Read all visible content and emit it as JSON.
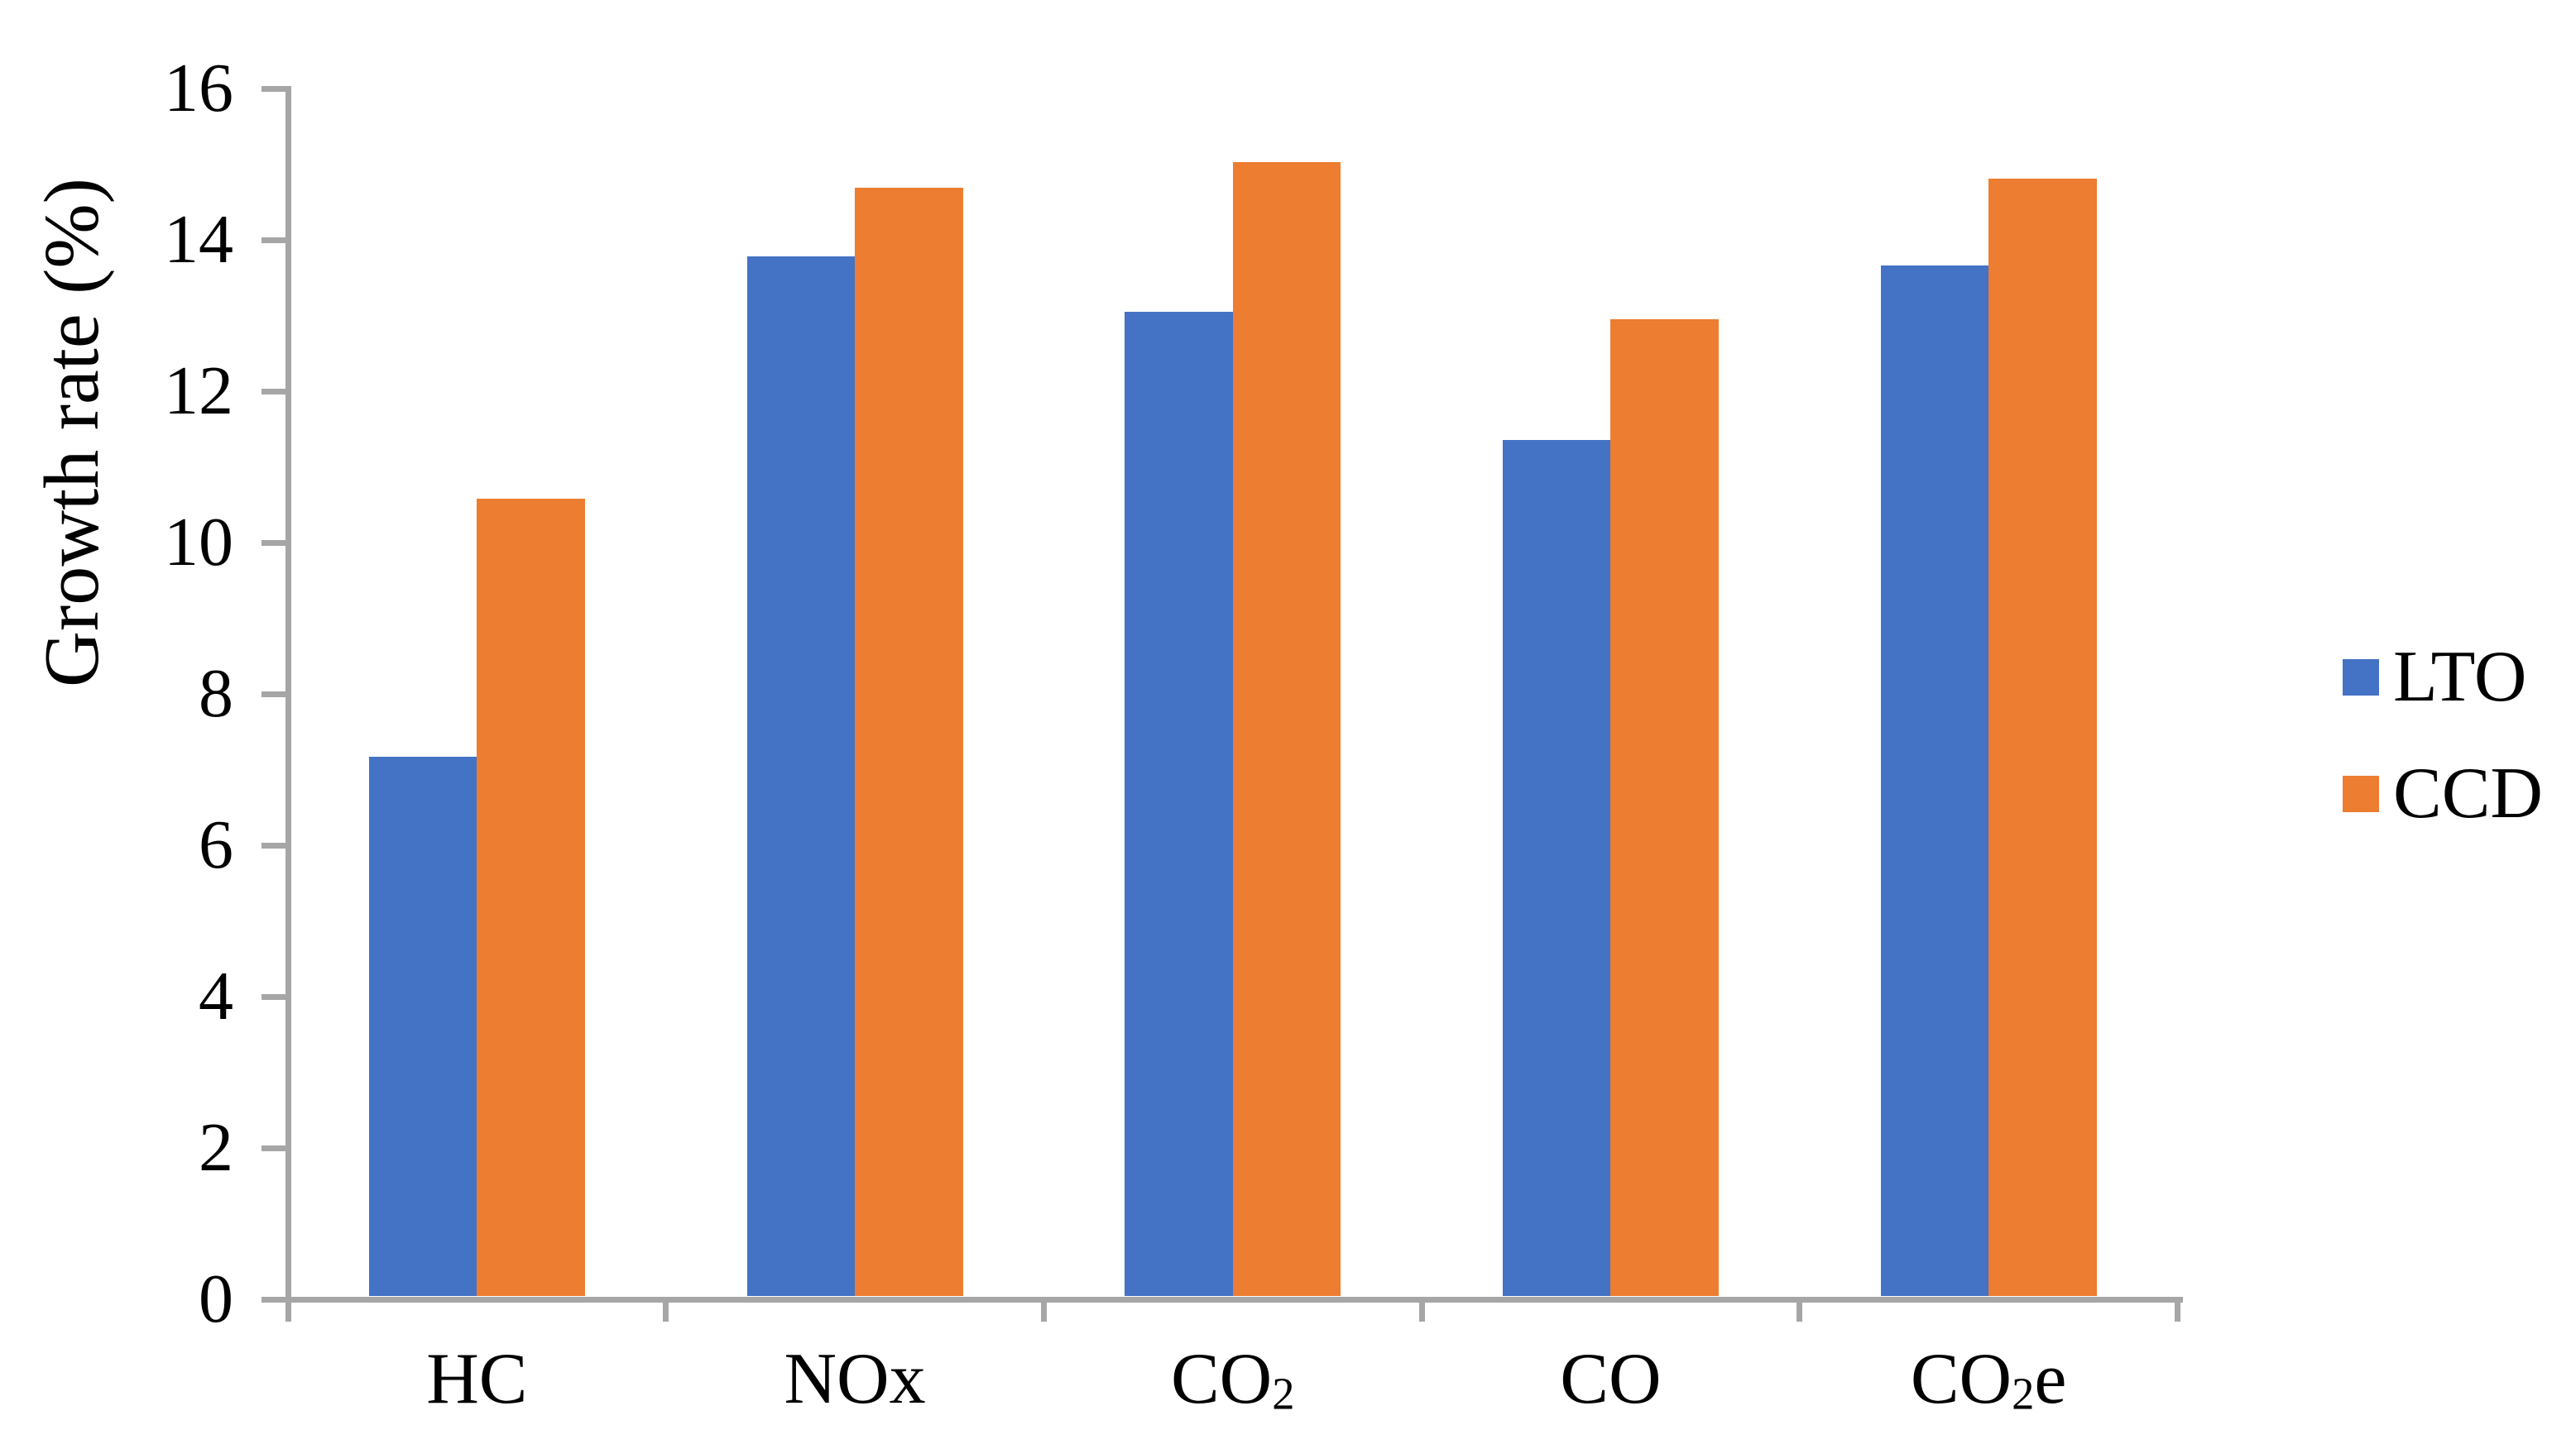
{
  "chart_data": {
    "type": "bar",
    "title": "",
    "ylabel": "Growth rate (%)",
    "xlabel": "",
    "categories": [
      "HC",
      "NOx",
      "CO₂",
      "CO",
      "CO₂e"
    ],
    "series": [
      {
        "name": "LTO",
        "color": "#4472C4",
        "values": [
          7.17,
          13.78,
          13.05,
          11.35,
          13.66
        ]
      },
      {
        "name": "CCD",
        "color": "#ED7D31",
        "values": [
          10.58,
          14.69,
          15.03,
          12.95,
          14.81
        ]
      }
    ],
    "ylim": [
      0,
      16
    ],
    "y_ticks": [
      0,
      2,
      4,
      6,
      8,
      10,
      12,
      14,
      16
    ],
    "y_tick_step": 2,
    "grid": "off",
    "legend_position": "right",
    "bar_gap_within_group": 0,
    "axis_color": "#A6A6A6",
    "text_color": "#000000",
    "background": "#FFFFFF"
  }
}
